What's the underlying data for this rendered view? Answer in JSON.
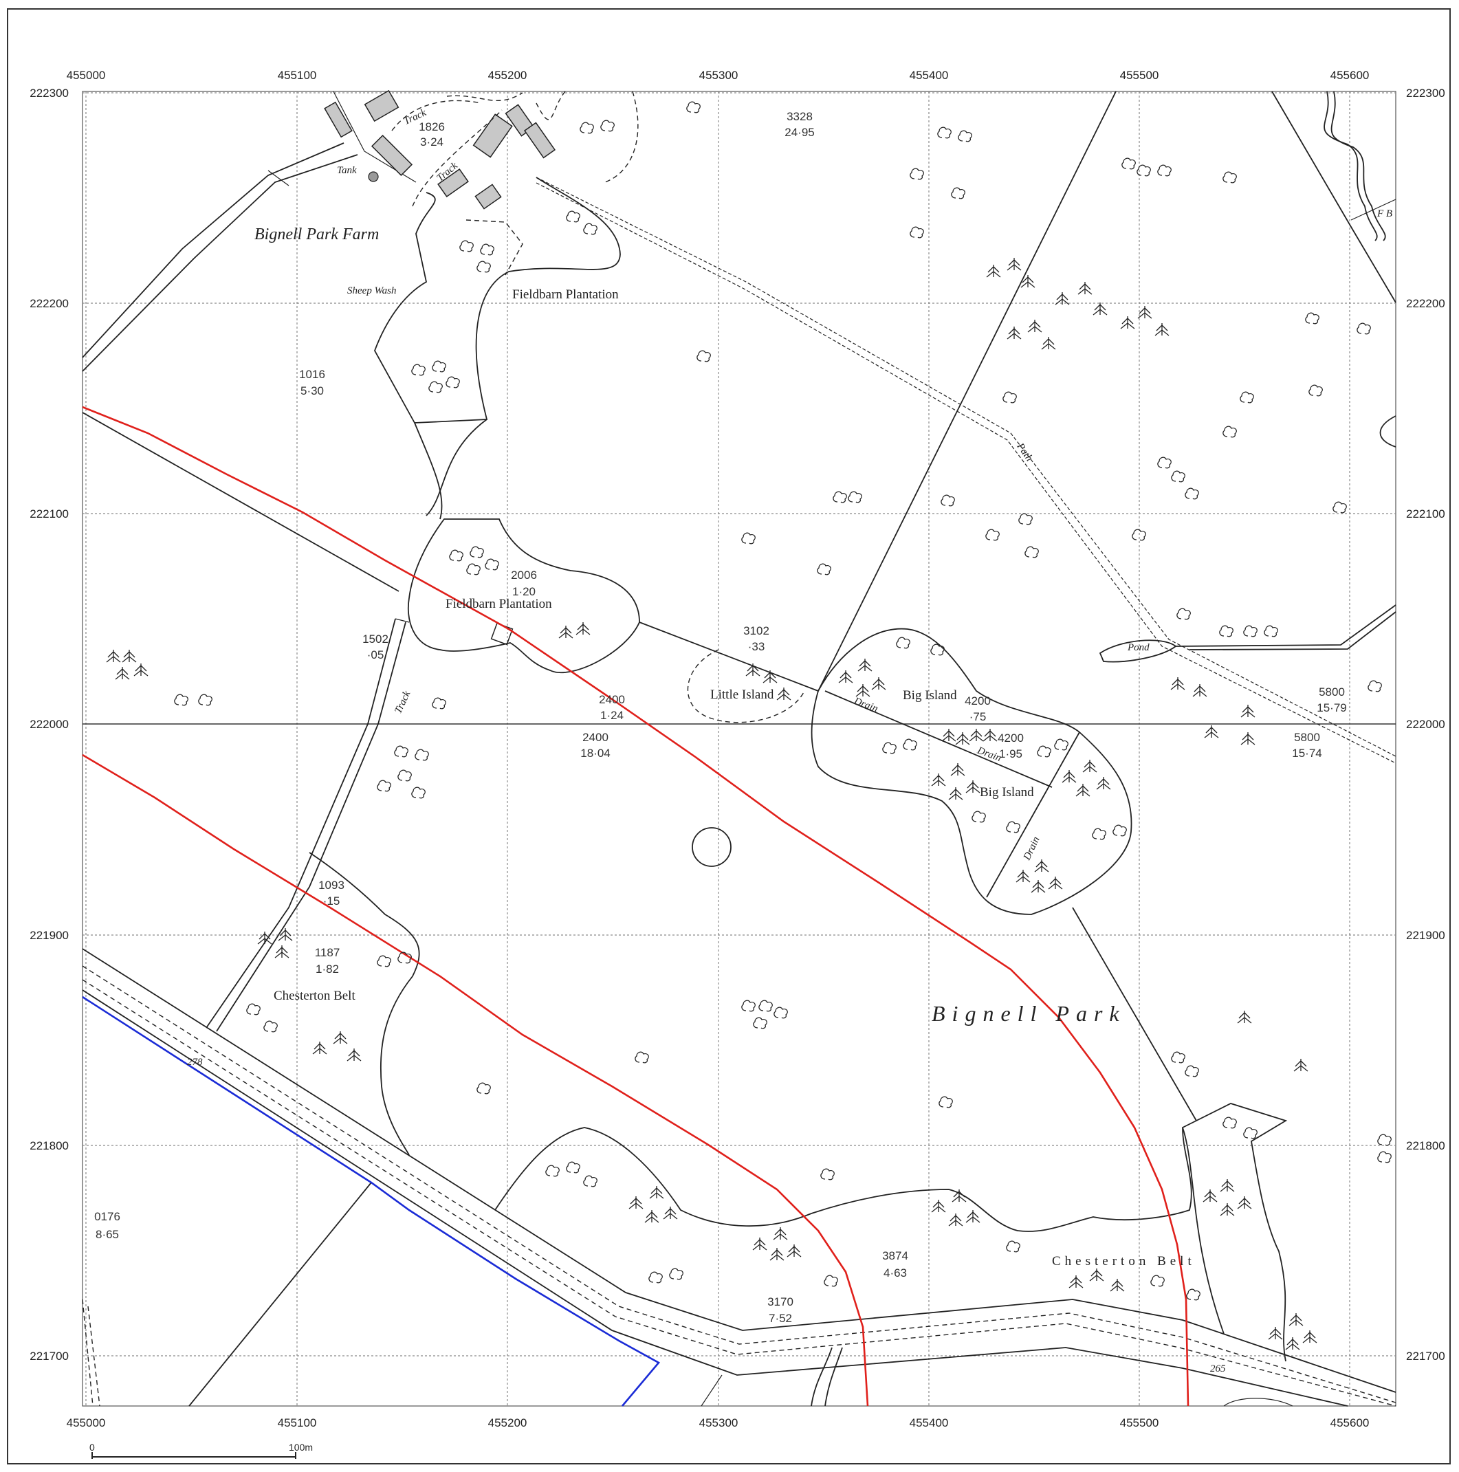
{
  "map": {
    "x_ticks": [
      "455000",
      "455100",
      "455200",
      "455300",
      "455400",
      "455500",
      "455600"
    ],
    "y_ticks": [
      "222300",
      "222200",
      "222100",
      "222000",
      "221900",
      "221800",
      "221700"
    ],
    "place_names": {
      "farm": "Bignell Park Farm",
      "fieldbarn_top": "Fieldbarn Plantation",
      "fieldbarn_mid": "Fieldbarn Plantation",
      "little_island": "Little Island",
      "big_island_top": "Big Island",
      "big_island_mid": "Big Island",
      "chesterton_belt_left": "Chesterton Belt",
      "chesterton_belt_bottom": "Chesterton Belt",
      "park": "Bignell Park"
    },
    "small_labels": {
      "track1": "Track",
      "track2": "Track",
      "track3": "Track",
      "tank": "Tank",
      "sheep_wash": "Sheep Wash",
      "path": "Path",
      "pond": "Pond",
      "drain1": "Drain",
      "drain2": "Drain",
      "drain3": "Drain",
      "fb": "F B",
      "bm278": "278",
      "bm265": "265"
    },
    "parcels": [
      {
        "id": "1826",
        "area": "3·24"
      },
      {
        "id": "3328",
        "area": "24·95"
      },
      {
        "id": "1016",
        "area": "5·30"
      },
      {
        "id": "2006",
        "area": "1·20"
      },
      {
        "id": "1502",
        "area": "·05"
      },
      {
        "id": "3102",
        "area": "·33"
      },
      {
        "id": "2400",
        "area": "1·24"
      },
      {
        "id": "2400",
        "area": "18·04"
      },
      {
        "id": "4200",
        "area": "·75"
      },
      {
        "id": "4200",
        "area": "1·95"
      },
      {
        "id": "5800",
        "area": "15·79"
      },
      {
        "id": "5800",
        "area": "15·74"
      },
      {
        "id": "1093",
        "area": "·15"
      },
      {
        "id": "1187",
        "area": "1·82"
      },
      {
        "id": "0176",
        "area": "8·65"
      },
      {
        "id": "3874",
        "area": "4·63"
      },
      {
        "id": "3170",
        "area": "7·52"
      }
    ],
    "scale": {
      "start": "0",
      "end": "100m"
    },
    "colors": {
      "boundary_red": "#e0201b",
      "boundary_blue": "#1a2bd6",
      "building": "#c8c8c8"
    }
  }
}
